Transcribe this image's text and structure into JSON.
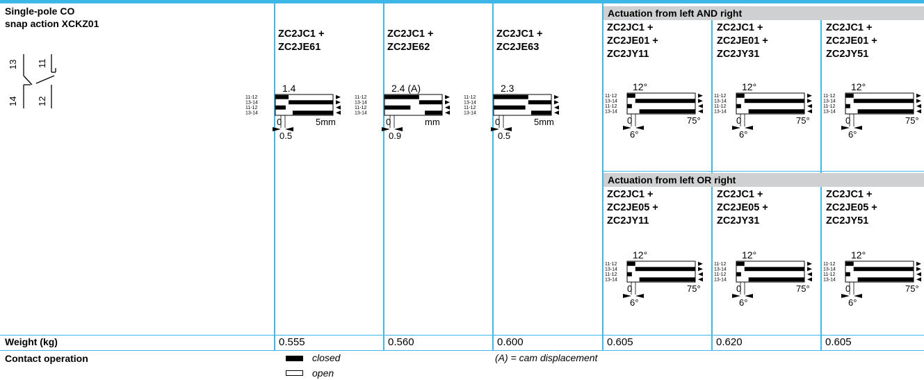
{
  "device": {
    "title_line1": "Single-pole CO",
    "title_line2": "snap action XCKZ01",
    "terminals": [
      "13",
      "11",
      "14",
      "12"
    ]
  },
  "group_headers": {
    "and": "Actuation from left AND right",
    "or": "Actuation from left OR right"
  },
  "columns_top": [
    {
      "ref": [
        "ZC2JC1 +",
        "ZC2JE61"
      ],
      "label_top": "1.4",
      "label_bottom": "0.5",
      "axis_start": "0",
      "axis_end": "5mm",
      "row_labels": [
        "11-12",
        "13-14",
        "11-12",
        "13-14"
      ]
    },
    {
      "ref": [
        "ZC2JC1 +",
        "ZC2JE62"
      ],
      "label_top": "2.4 (A)",
      "label_bottom": "0.9",
      "axis_start": "0",
      "axis_end": "mm",
      "row_labels": [
        "11-12",
        "13-14",
        "11-12",
        "13-14"
      ]
    },
    {
      "ref": [
        "ZC2JC1 +",
        "ZC2JE63"
      ],
      "label_top": "2.3",
      "label_bottom": "0.5",
      "axis_start": "0",
      "axis_end": "5mm",
      "row_labels": [
        "11-12",
        "13-14",
        "11-12",
        "13-14"
      ]
    },
    {
      "ref": [
        "ZC2JC1 +",
        "ZC2JE01 +",
        "ZC2JY11"
      ],
      "label_top": "12°",
      "label_bottom": "6°",
      "axis_start": "0",
      "axis_end": "75°",
      "row_labels": [
        "11-12",
        "13-14",
        "11-12",
        "13-14"
      ]
    },
    {
      "ref": [
        "ZC2JC1 +",
        "ZC2JE01 +",
        "ZC2JY31"
      ],
      "label_top": "12°",
      "label_bottom": "6°",
      "axis_start": "0",
      "axis_end": "75°",
      "row_labels": [
        "11-12",
        "13-14",
        "11-12",
        "13-14"
      ]
    },
    {
      "ref": [
        "ZC2JC1 +",
        "ZC2JE01 +",
        "ZC2JY51"
      ],
      "label_top": "12°",
      "label_bottom": "6°",
      "axis_start": "0",
      "axis_end": "75°",
      "row_labels": [
        "11-12",
        "13-14",
        "11-12",
        "13-14"
      ]
    }
  ],
  "columns_bottom": [
    {
      "ref": [
        "ZC2JC1 +",
        "ZC2JE05 +",
        "ZC2JY11"
      ],
      "label_top": "12°",
      "label_bottom": "6°",
      "axis_start": "0",
      "axis_end": "75°",
      "row_labels": [
        "11-12",
        "13-14",
        "11-12",
        "13-14"
      ]
    },
    {
      "ref": [
        "ZC2JC1 +",
        "ZC2JE05 +",
        "ZC2JY31"
      ],
      "label_top": "12°",
      "label_bottom": "6°",
      "axis_start": "0",
      "axis_end": "75°",
      "row_labels": [
        "11-12",
        "13-14",
        "11-12",
        "13-14"
      ]
    },
    {
      "ref": [
        "ZC2JC1 +",
        "ZC2JE05 +",
        "ZC2JY51"
      ],
      "label_top": "12°",
      "label_bottom": "6°",
      "axis_start": "0",
      "axis_end": "75°",
      "row_labels": [
        "11-12",
        "13-14",
        "11-12",
        "13-14"
      ]
    }
  ],
  "weight": {
    "label": "Weight (kg)",
    "values": [
      "0.555",
      "0.560",
      "0.600",
      "0.605",
      "0.620",
      "0.605"
    ]
  },
  "contact_operation": {
    "label": "Contact operation",
    "closed": "closed",
    "open": "open",
    "note": "(A) = cam displacement"
  },
  "colors": {
    "accent": "#3fb6e8",
    "header_bg": "#cfd0d1"
  }
}
